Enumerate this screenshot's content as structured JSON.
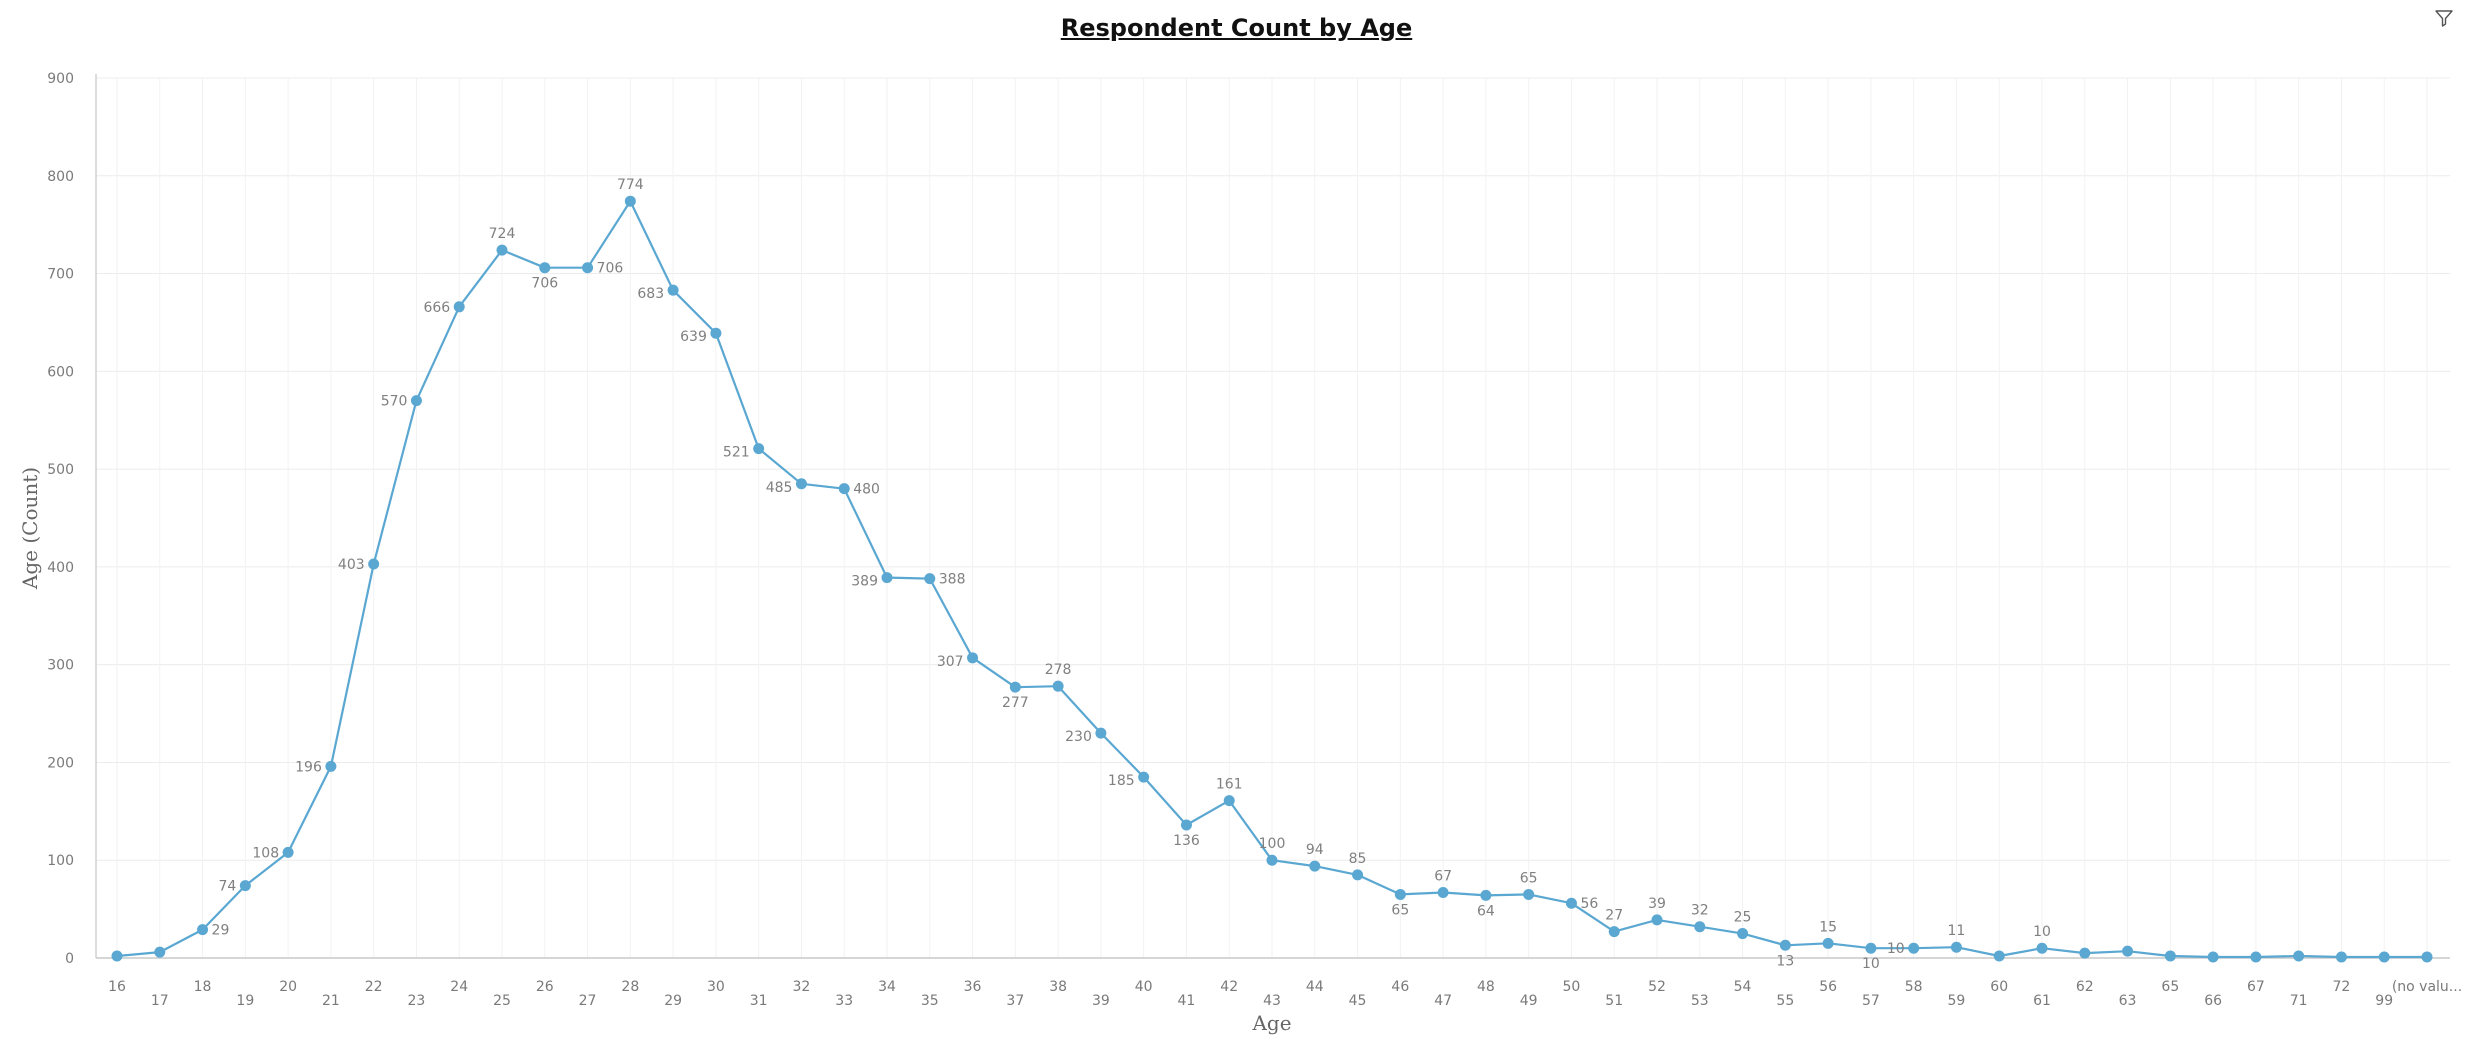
{
  "chart_data": {
    "type": "line",
    "title": "Respondent Count by Age",
    "xlabel": "Age",
    "ylabel": "Age (Count)",
    "ylim": [
      0,
      900
    ],
    "yticks": [
      0,
      100,
      200,
      300,
      400,
      500,
      600,
      700,
      800,
      900
    ],
    "grid": true,
    "color": "#5aa7d2",
    "categories": [
      "16",
      "17",
      "18",
      "19",
      "20",
      "21",
      "22",
      "23",
      "24",
      "25",
      "26",
      "27",
      "28",
      "29",
      "30",
      "31",
      "32",
      "33",
      "34",
      "35",
      "36",
      "37",
      "38",
      "39",
      "40",
      "41",
      "42",
      "43",
      "44",
      "45",
      "46",
      "47",
      "48",
      "49",
      "50",
      "51",
      "52",
      "53",
      "54",
      "55",
      "56",
      "57",
      "58",
      "59",
      "60",
      "61",
      "62",
      "63",
      "65",
      "66",
      "67",
      "71",
      "72",
      "99",
      "(no valu..."
    ],
    "values": [
      2,
      6,
      29,
      74,
      108,
      196,
      403,
      570,
      666,
      724,
      706,
      706,
      774,
      683,
      639,
      521,
      485,
      480,
      389,
      388,
      307,
      277,
      278,
      230,
      185,
      136,
      161,
      100,
      94,
      85,
      65,
      67,
      64,
      65,
      56,
      27,
      39,
      32,
      25,
      13,
      15,
      10,
      10,
      11,
      2,
      10,
      5,
      7,
      2,
      1,
      1,
      2,
      1,
      1,
      1
    ],
    "data_labels": {
      "2": "29",
      "3": "74",
      "4": "108",
      "5": "196",
      "6": "403",
      "7": "570",
      "8": "666",
      "9": "724",
      "10": "706",
      "11": "706",
      "12": "774",
      "13": "683",
      "14": "639",
      "15": "521",
      "16": "485",
      "17": "480",
      "18": "389",
      "19": "388",
      "20": "307",
      "21": "277",
      "22": "278",
      "23": "230",
      "24": "185",
      "25": "136",
      "26": "161",
      "27": "100",
      "28": "94",
      "29": "85",
      "30": "65",
      "31": "67",
      "32": "64",
      "33": "65",
      "34": "56",
      "35": "27",
      "36": "39",
      "37": "32",
      "38": "25",
      "39": "13",
      "40": "15",
      "41": "10",
      "42": "10",
      "43": "11",
      "45": "10"
    }
  },
  "icons": {
    "filter": "filter-icon"
  }
}
